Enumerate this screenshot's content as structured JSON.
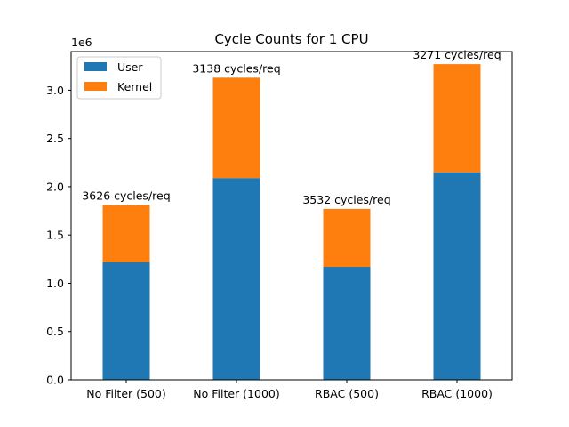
{
  "chart_data": {
    "type": "bar",
    "stacked": true,
    "title": "Cycle Counts for 1 CPU",
    "xlabel": "",
    "ylabel": "",
    "y_scale_multiplier_label": "1e6",
    "categories": [
      "No Filter (500)",
      "No Filter (1000)",
      "RBAC (500)",
      "RBAC (1000)"
    ],
    "series": [
      {
        "name": "User",
        "color": "#1f77b4",
        "values": [
          1.22,
          2.09,
          1.17,
          2.15
        ]
      },
      {
        "name": "Kernel",
        "color": "#ff7f0e",
        "values": [
          0.59,
          1.04,
          0.6,
          1.12
        ]
      }
    ],
    "data_labels": [
      "3626 cycles/req",
      "3138 cycles/req",
      "3532 cycles/req",
      "3271 cycles/req"
    ],
    "ylim": [
      0,
      3.4
    ],
    "yticks": [
      "0.0",
      "0.5",
      "1.0",
      "1.5",
      "2.0",
      "2.5",
      "3.0"
    ],
    "ytick_values": [
      0,
      0.5,
      1.0,
      1.5,
      2.0,
      2.5,
      3.0
    ],
    "legend_position": "top-left",
    "grid": false
  }
}
